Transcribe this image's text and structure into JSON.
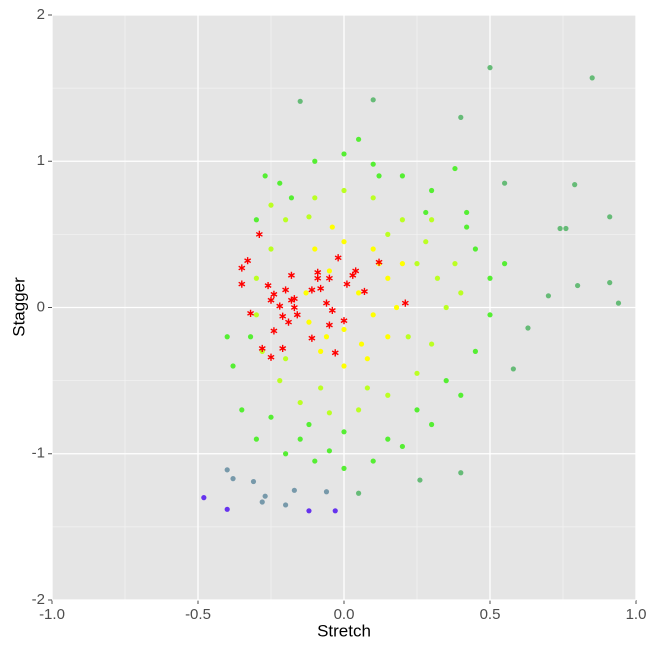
{
  "chart_data": {
    "type": "scatter",
    "xlabel": "Stretch",
    "ylabel": "Stagger",
    "xlim": [
      -1,
      1
    ],
    "ylim": [
      -2,
      2
    ],
    "xticks": [
      {
        "value": -1,
        "label": "-1.0"
      },
      -0.5,
      {
        "value": 0,
        "label": "0.0"
      },
      0.5,
      {
        "value": 1,
        "label": "1.0"
      }
    ],
    "yticks": [
      -2,
      -1,
      0,
      1,
      2
    ],
    "x_minor_ticks": [
      -0.75,
      -0.25,
      0.25,
      0.75
    ],
    "y_minor_ticks": [
      -1.5,
      -0.5,
      0.5,
      1.5
    ],
    "grid": true,
    "series": [
      {
        "color": "#55ee33",
        "marker": "dot",
        "x": [
          -0.22,
          -0.1,
          0.0,
          0.1,
          0.2,
          0.3,
          0.38,
          0.42,
          0.45,
          0.5,
          0.5,
          0.45,
          0.4,
          0.3,
          0.2,
          0.1,
          0.0,
          -0.1,
          -0.2,
          -0.3,
          -0.35,
          -0.38,
          -0.4,
          -0.3,
          -0.27,
          0.05,
          -0.15,
          0.25,
          -0.25,
          0.35,
          0.55,
          0.42,
          -0.05,
          0.15,
          -0.32,
          0.0,
          -0.12,
          0.12,
          -0.18,
          0.28
        ],
        "values": [
          0.85,
          1.0,
          1.05,
          0.98,
          0.9,
          0.8,
          0.95,
          0.65,
          0.4,
          0.2,
          -0.05,
          -0.3,
          -0.6,
          -0.8,
          -0.95,
          -1.05,
          -1.1,
          -1.05,
          -1.0,
          -0.9,
          -0.7,
          -0.4,
          -0.2,
          0.6,
          0.9,
          1.15,
          -0.9,
          -0.7,
          -0.75,
          -0.5,
          0.3,
          0.55,
          -0.98,
          -0.9,
          -0.2,
          -0.85,
          -0.8,
          0.9,
          0.75,
          0.65
        ]
      },
      {
        "color": "#bbff22",
        "marker": "dot",
        "x": [
          -0.25,
          -0.2,
          -0.1,
          0.0,
          0.1,
          0.2,
          0.28,
          0.32,
          0.35,
          0.3,
          0.25,
          0.15,
          0.05,
          -0.05,
          -0.15,
          -0.22,
          -0.28,
          -0.3,
          -0.3,
          0.38,
          0.22,
          -0.12,
          0.15,
          -0.2,
          0.08,
          0.4,
          -0.08,
          0.25,
          0.3,
          -0.25
        ],
        "values": [
          0.4,
          0.6,
          0.75,
          0.8,
          0.75,
          0.6,
          0.45,
          0.2,
          0.0,
          -0.25,
          -0.45,
          -0.6,
          -0.7,
          -0.72,
          -0.65,
          -0.5,
          -0.3,
          -0.05,
          0.2,
          0.3,
          -0.2,
          0.62,
          0.5,
          -0.35,
          -0.55,
          0.1,
          -0.55,
          0.3,
          0.6,
          0.7
        ]
      },
      {
        "color": "#ffff00",
        "marker": "dot",
        "x": [
          -0.1,
          0.0,
          0.1,
          0.15,
          0.18,
          0.15,
          0.08,
          0.0,
          -0.08,
          -0.12,
          -0.13,
          -0.05,
          0.05,
          0.0,
          0.1,
          -0.04,
          0.06,
          0.2,
          -0.06,
          0.12
        ],
        "values": [
          0.4,
          0.45,
          0.4,
          0.2,
          0.0,
          -0.2,
          -0.35,
          -0.4,
          -0.3,
          -0.1,
          0.1,
          0.25,
          0.1,
          -0.15,
          -0.05,
          0.55,
          -0.25,
          0.3,
          -0.2,
          0.3
        ]
      },
      {
        "color": "#66bb77",
        "marker": "dot",
        "x": [
          0.5,
          0.85,
          -0.15,
          0.1,
          0.4,
          0.79,
          0.91,
          0.74,
          0.76,
          0.8,
          0.91,
          0.94,
          0.7,
          0.55,
          0.63,
          0.58,
          0.4,
          0.26,
          0.05
        ],
        "values": [
          1.64,
          1.57,
          1.41,
          1.42,
          1.3,
          0.84,
          0.62,
          0.54,
          0.54,
          0.15,
          0.17,
          0.03,
          0.08,
          0.85,
          -0.14,
          -0.42,
          -1.13,
          -1.18,
          -1.27
        ]
      },
      {
        "color": "#7799aa",
        "marker": "dot",
        "x": [
          -0.4,
          -0.38,
          -0.27,
          -0.28,
          -0.2,
          -0.06,
          -0.17,
          -0.31
        ],
        "values": [
          -1.11,
          -1.17,
          -1.29,
          -1.33,
          -1.35,
          -1.26,
          -1.25,
          -1.19
        ]
      },
      {
        "color": "#6633ee",
        "marker": "dot",
        "x": [
          -0.48,
          -0.4,
          -0.12,
          -0.03
        ],
        "values": [
          -1.3,
          -1.38,
          -1.39,
          -1.39
        ]
      },
      {
        "color": "#ff0000",
        "marker": "star",
        "x": [
          -0.29,
          -0.35,
          -0.33,
          -0.35,
          -0.32,
          -0.26,
          -0.25,
          -0.24,
          -0.22,
          -0.2,
          -0.18,
          -0.17,
          -0.21,
          -0.19,
          -0.24,
          -0.28,
          -0.25,
          -0.21,
          -0.18,
          -0.11,
          -0.09,
          -0.09,
          -0.08,
          -0.05,
          -0.02,
          0.03,
          0.04,
          0.01,
          0.07,
          0.12,
          0.21,
          -0.06,
          -0.04,
          0.0,
          -0.05,
          -0.11,
          -0.03,
          -0.16,
          -0.17
        ],
        "values": [
          0.5,
          0.27,
          0.32,
          0.16,
          -0.04,
          0.15,
          0.05,
          0.09,
          0.01,
          0.12,
          0.05,
          0.06,
          -0.06,
          -0.1,
          -0.16,
          -0.28,
          -0.34,
          -0.28,
          0.22,
          0.12,
          0.24,
          0.2,
          0.13,
          0.2,
          0.34,
          0.22,
          0.25,
          0.16,
          0.11,
          0.31,
          0.03,
          0.03,
          -0.02,
          -0.09,
          -0.12,
          -0.21,
          -0.31,
          -0.05,
          0.0
        ]
      }
    ]
  }
}
